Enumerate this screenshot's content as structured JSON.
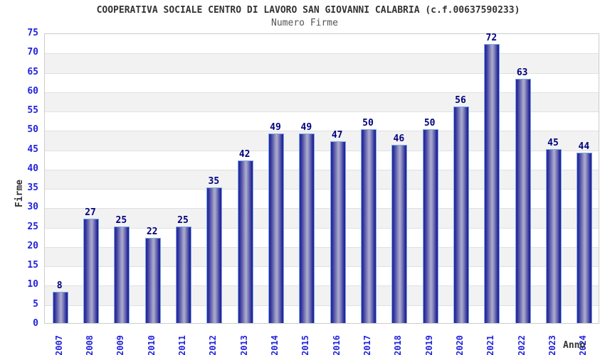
{
  "header": {
    "title": "COOPERATIVA SOCIALE CENTRO DI LAVORO SAN GIOVANNI CALABRIA (c.f.00637590233)",
    "subtitle": "Numero Firme"
  },
  "chart_data": {
    "type": "bar",
    "title": "COOPERATIVA SOCIALE CENTRO DI LAVORO SAN GIOVANNI CALABRIA (c.f.00637590233)",
    "subtitle": "Numero Firme",
    "xlabel": "Anno",
    "ylabel": "Firme",
    "categories": [
      "2007",
      "2008",
      "2009",
      "2010",
      "2011",
      "2012",
      "2013",
      "2014",
      "2015",
      "2016",
      "2017",
      "2018",
      "2019",
      "2020",
      "2021",
      "2022",
      "2023",
      "2024"
    ],
    "values": [
      8,
      27,
      25,
      22,
      25,
      35,
      42,
      49,
      49,
      47,
      50,
      46,
      50,
      56,
      72,
      63,
      45,
      44
    ],
    "ylim": [
      0,
      75
    ],
    "ytick_step": 5,
    "grid": true,
    "legend": "none",
    "band_colors": {
      "even": "#ffffff",
      "odd": "#f2f2f2"
    },
    "colors": {
      "bar_edge_dark": "#26269c",
      "bar_center_light": "#aaaacd",
      "bar_border": "#79aae8",
      "tick_label": "#2222dd",
      "value_label": "#00007d",
      "grid_line": "#e0e0e0",
      "plot_border": "#cccccc",
      "title": "#333333",
      "subtitle": "#555555"
    }
  }
}
